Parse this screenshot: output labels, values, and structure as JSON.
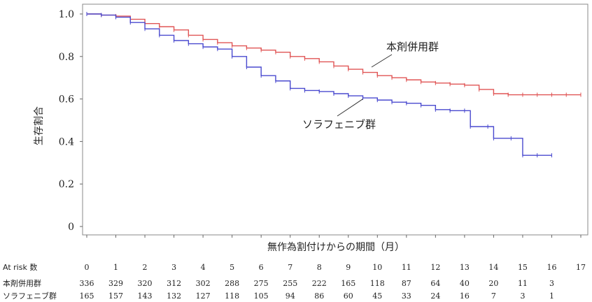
{
  "chart_data": {
    "type": "line",
    "title": "",
    "xlabel": "無作為割付けからの期間（月）",
    "ylabel": "生存割合",
    "xlim": [
      0,
      17
    ],
    "ylim": [
      0,
      1.0
    ],
    "y_ticks": [
      "0",
      "0.2",
      "0.4",
      "0.6",
      "0.8",
      "1.0"
    ],
    "x_ticks": [
      "0",
      "1",
      "2",
      "3",
      "4",
      "5",
      "6",
      "7",
      "8",
      "9",
      "10",
      "11",
      "12",
      "13",
      "14",
      "15",
      "16",
      "17"
    ],
    "grid": false,
    "series": [
      {
        "name": "本剤併用群",
        "color": "#e05555",
        "style": "step-with-censor-marks",
        "points": [
          [
            0,
            1.0
          ],
          [
            0.5,
            0.995
          ],
          [
            1,
            0.99
          ],
          [
            1.5,
            0.975
          ],
          [
            2,
            0.955
          ],
          [
            2.5,
            0.94
          ],
          [
            3,
            0.925
          ],
          [
            3.5,
            0.9
          ],
          [
            4,
            0.88
          ],
          [
            4.5,
            0.865
          ],
          [
            5,
            0.85
          ],
          [
            5.5,
            0.84
          ],
          [
            6,
            0.83
          ],
          [
            6.5,
            0.82
          ],
          [
            7,
            0.8
          ],
          [
            7.5,
            0.79
          ],
          [
            8,
            0.775
          ],
          [
            8.5,
            0.755
          ],
          [
            9,
            0.74
          ],
          [
            9.5,
            0.725
          ],
          [
            10,
            0.71
          ],
          [
            10.5,
            0.7
          ],
          [
            11,
            0.69
          ],
          [
            11.5,
            0.68
          ],
          [
            12,
            0.675
          ],
          [
            12.5,
            0.67
          ],
          [
            13,
            0.665
          ],
          [
            13.5,
            0.645
          ],
          [
            14,
            0.625
          ],
          [
            14.5,
            0.62
          ],
          [
            15,
            0.62
          ],
          [
            15.5,
            0.62
          ],
          [
            16,
            0.62
          ],
          [
            16.5,
            0.62
          ],
          [
            17,
            0.62
          ]
        ]
      },
      {
        "name": "ソラフェニブ群",
        "color": "#4a4acf",
        "style": "step-with-censor-marks",
        "points": [
          [
            0,
            1.0
          ],
          [
            0.5,
            0.995
          ],
          [
            1,
            0.985
          ],
          [
            1.5,
            0.96
          ],
          [
            2,
            0.93
          ],
          [
            2.5,
            0.9
          ],
          [
            3,
            0.875
          ],
          [
            3.5,
            0.86
          ],
          [
            4,
            0.845
          ],
          [
            4.5,
            0.835
          ],
          [
            5,
            0.8
          ],
          [
            5.5,
            0.75
          ],
          [
            6,
            0.71
          ],
          [
            6.5,
            0.685
          ],
          [
            7,
            0.65
          ],
          [
            7.5,
            0.64
          ],
          [
            8,
            0.635
          ],
          [
            8.5,
            0.625
          ],
          [
            9,
            0.615
          ],
          [
            9.5,
            0.605
          ],
          [
            10,
            0.595
          ],
          [
            10.5,
            0.585
          ],
          [
            11,
            0.58
          ],
          [
            11.5,
            0.57
          ],
          [
            12,
            0.55
          ],
          [
            12.5,
            0.545
          ],
          [
            13,
            0.545
          ],
          [
            13.2,
            0.47
          ],
          [
            13.8,
            0.47
          ],
          [
            14,
            0.415
          ],
          [
            14.6,
            0.415
          ],
          [
            15,
            0.335
          ],
          [
            15.5,
            0.335
          ],
          [
            16,
            0.335
          ]
        ]
      }
    ],
    "annotations": [
      {
        "text": "本剤併用群",
        "series": 0,
        "x": 9.8,
        "y": 0.75
      },
      {
        "text": "ソラフェニブ群",
        "series": 1,
        "x": 9.5,
        "y": 0.6
      }
    ],
    "at_risk": {
      "header": "At risk 数",
      "rows": [
        {
          "name": "本剤併用群",
          "values": [
            "336",
            "329",
            "320",
            "312",
            "302",
            "288",
            "275",
            "255",
            "222",
            "165",
            "118",
            "87",
            "64",
            "40",
            "20",
            "11",
            "3"
          ]
        },
        {
          "name": "ソラフェニブ群",
          "values": [
            "165",
            "157",
            "143",
            "132",
            "127",
            "118",
            "105",
            "94",
            "86",
            "60",
            "45",
            "33",
            "24",
            "16",
            "7",
            "3",
            "1"
          ]
        }
      ]
    }
  }
}
